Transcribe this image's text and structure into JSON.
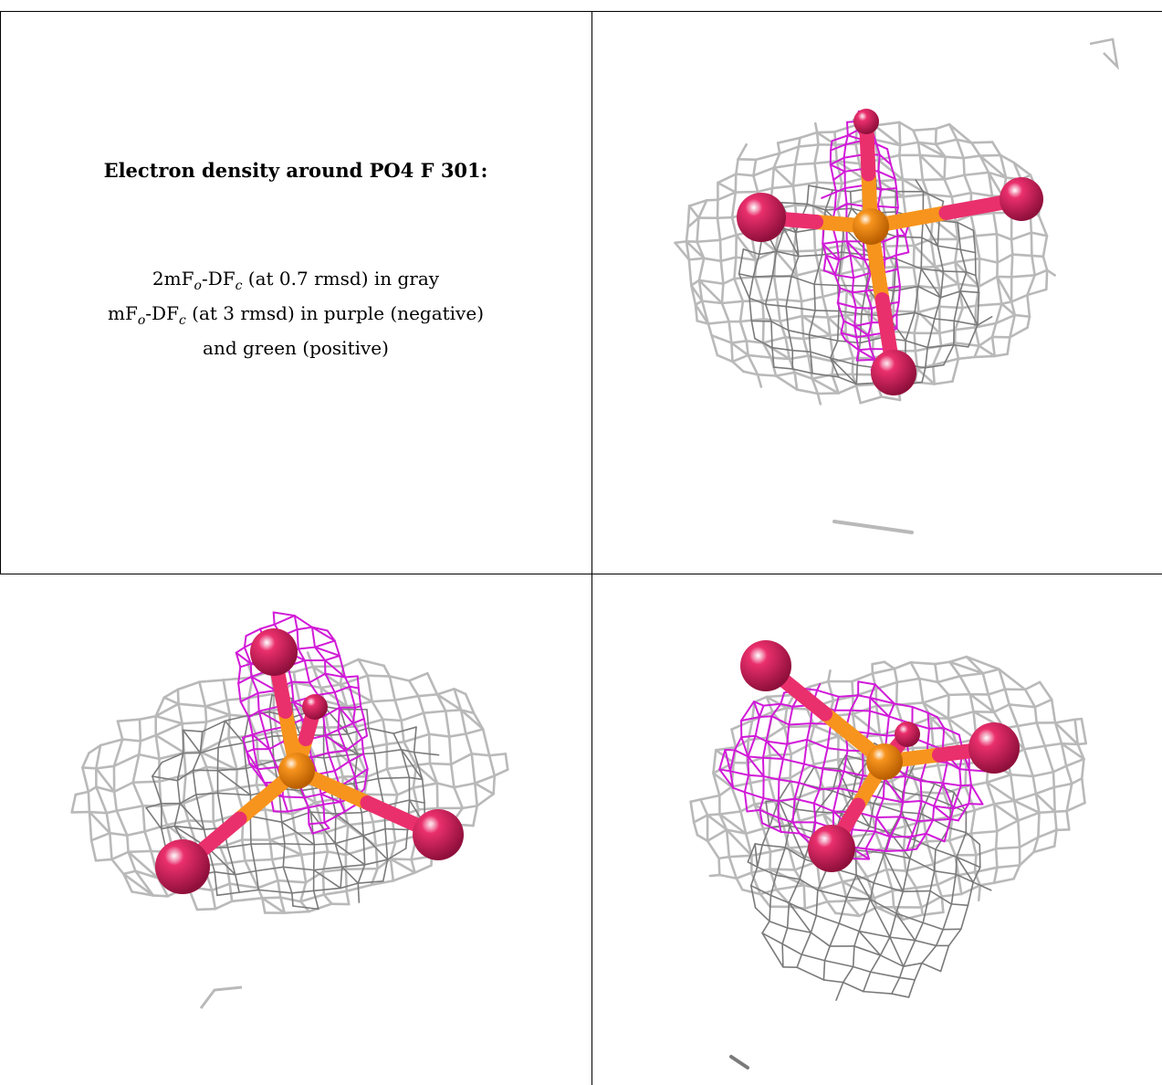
{
  "caption": {
    "title": "Electron density around PO4 F 301:",
    "line1_prefix": "2mF",
    "line1_sub_o": "o",
    "line1_mid": "-DF",
    "line1_sub_c": "c",
    "line1_suffix": " (at 0.7 rmsd) in gray",
    "line2_prefix": "mF",
    "line2_sub_o": "o",
    "line2_mid": "-DF",
    "line2_sub_c": "c",
    "line2_suffix": " (at 3 rmsd) in purple (negative)",
    "line3": "and green (positive)"
  },
  "colors": {
    "mesh_gray": "#b9b9b9",
    "mesh_dark": "#7a7a7a",
    "mesh_purple": "#d11ad8",
    "oxygen": "#ea2f6d",
    "phosphorus": "#f7941d"
  },
  "panels": [
    {
      "name": "view-top-right",
      "icon": "phosphate-density-render"
    },
    {
      "name": "view-bottom-left",
      "icon": "phosphate-density-render"
    },
    {
      "name": "view-bottom-right",
      "icon": "phosphate-density-render"
    }
  ]
}
